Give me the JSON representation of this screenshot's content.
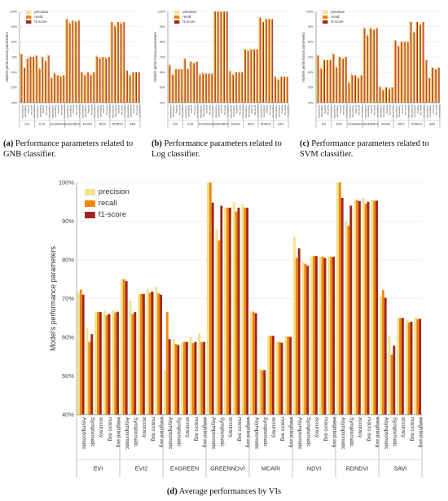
{
  "captions": {
    "a": {
      "letter": "(a)",
      "text": " Performance parameters related to GNB classifier."
    },
    "b": {
      "letter": "(b)",
      "text": " Performance parameters related to Log classifier."
    },
    "c": {
      "letter": "(c)",
      "text": " Performance parameters related to SVM classifier."
    },
    "d": {
      "letter": "(d)",
      "text": " Average performances by VIs"
    }
  },
  "colors": {
    "precision": "#f2e38c",
    "recall": "#f0870a",
    "f1-score": "#a2261f"
  },
  "chart_data": [
    {
      "id": "a",
      "type": "bar",
      "ylabel": "Model's performance parameters",
      "ylim": [
        40,
        100
      ],
      "yticks": [
        "40%",
        "50%",
        "60%",
        "70%",
        "80%",
        "90%",
        "100%"
      ],
      "legend": {
        "entries": [
          "precision",
          "recall",
          "f1-score"
        ],
        "placement": "top-left"
      },
      "groups": [
        "EVI",
        "EVI2",
        "EXGREEN",
        "GREENNDVI",
        "MCARI",
        "NDVI",
        "RDNDVI",
        "SAVI"
      ],
      "metrics": [
        "Asymptomatic",
        "Symptomatic",
        "accuracy",
        "macro avg",
        "weighted avg"
      ],
      "series": [
        {
          "name": "precision",
          "values": [
            73,
            64,
            69,
            70,
            70,
            72,
            62,
            71,
            67,
            72,
            56,
            59,
            58,
            57,
            59,
            96,
            92,
            94,
            93,
            94,
            61,
            59,
            60,
            58,
            60,
            70,
            69,
            70,
            69,
            70,
            94,
            90,
            93,
            92,
            93,
            62,
            59,
            60,
            60,
            60
          ]
        },
        {
          "name": "recall",
          "values": [
            72,
            63,
            69,
            71,
            70,
            71,
            63,
            70,
            68,
            71,
            57,
            60,
            58,
            58,
            58,
            95,
            93,
            94,
            94,
            94,
            60,
            58,
            60,
            59,
            60,
            71,
            70,
            70,
            70,
            70,
            93,
            91,
            93,
            93,
            93,
            61,
            58,
            60,
            60,
            60
          ]
        },
        {
          "name": "f1-score",
          "values": [
            72,
            63,
            69,
            70,
            70,
            71,
            62,
            70,
            67,
            71,
            56,
            59,
            58,
            57,
            58,
            95,
            92,
            94,
            93,
            94,
            60,
            58,
            60,
            58,
            60,
            70,
            69,
            70,
            69,
            70,
            93,
            90,
            93,
            92,
            93,
            61,
            58,
            60,
            60,
            60
          ]
        }
      ]
    },
    {
      "id": "b",
      "type": "bar",
      "ylabel": "Model's performance parameters",
      "ylim": [
        40,
        100
      ],
      "yticks": [
        "40%",
        "50%",
        "60%",
        "70%",
        "80%",
        "90%",
        "100%"
      ],
      "legend": {
        "entries": [
          "precision",
          "recall",
          "f1-score"
        ],
        "placement": "top-left"
      },
      "groups": [
        "EVI",
        "EVI2",
        "EXGREEN",
        "GREENNDVI",
        "MCARI",
        "NDVI",
        "RDNDVI",
        "SAVI"
      ],
      "metrics": [
        "Asymptomatic",
        "Symptomatic",
        "accuracy",
        "macro avg",
        "weighted avg"
      ],
      "series": [
        {
          "name": "precision",
          "values": [
            66,
            58,
            63,
            62,
            63,
            70,
            62,
            67,
            66,
            67,
            60,
            58,
            59,
            59,
            59,
            100,
            100,
            100,
            100,
            100,
            62,
            58,
            60,
            60,
            60,
            76,
            74,
            76,
            75,
            76,
            97,
            94,
            95,
            95,
            95,
            58,
            55,
            57,
            57,
            57
          ]
        },
        {
          "name": "recall",
          "values": [
            64,
            59,
            62,
            62,
            62,
            69,
            63,
            67,
            66,
            67,
            58,
            60,
            59,
            59,
            59,
            100,
            100,
            100,
            100,
            100,
            60,
            59,
            60,
            60,
            60,
            75,
            75,
            75,
            75,
            75,
            96,
            93,
            95,
            95,
            95,
            57,
            56,
            57,
            57,
            57
          ]
        },
        {
          "name": "f1-score",
          "values": [
            65,
            58,
            62,
            62,
            62,
            69,
            62,
            67,
            66,
            67,
            59,
            59,
            59,
            59,
            59,
            100,
            100,
            100,
            100,
            100,
            61,
            58,
            60,
            60,
            60,
            75,
            74,
            75,
            75,
            75,
            96,
            93,
            95,
            95,
            95,
            57,
            55,
            57,
            57,
            57
          ]
        }
      ]
    },
    {
      "id": "c",
      "type": "bar",
      "ylabel": "Model's performance parameters",
      "ylim": [
        40,
        100
      ],
      "yticks": [
        "40%",
        "50%",
        "60%",
        "70%",
        "80%",
        "90%",
        "100%"
      ],
      "legend": {
        "entries": [
          "precision",
          "recall",
          "f1-score"
        ],
        "placement": "top-left"
      },
      "groups": [
        "EVI",
        "EVI2",
        "EXGREEN",
        "GREENNDVI",
        "MCARI",
        "NDVI",
        "RDNDVI",
        "SAVI"
      ],
      "metrics": [
        "Asymptomatic",
        "Symptomatic",
        "accuracy",
        "macro avg",
        "weighted avg"
      ],
      "series": [
        {
          "name": "precision",
          "values": [
            72,
            62,
            69,
            68,
            69,
            73,
            63,
            71,
            69,
            71,
            52,
            58,
            58,
            56,
            58,
            90,
            84,
            89,
            88,
            89,
            50,
            48,
            50,
            49,
            50,
            82,
            77,
            80,
            80,
            80,
            94,
            86,
            93,
            91,
            93,
            69,
            56,
            63,
            62,
            63
          ]
        },
        {
          "name": "recall",
          "values": [
            71,
            63,
            68,
            68,
            68,
            72,
            64,
            70,
            69,
            70,
            54,
            59,
            58,
            57,
            58,
            89,
            85,
            89,
            88,
            89,
            51,
            49,
            50,
            50,
            50,
            81,
            78,
            80,
            80,
            80,
            93,
            87,
            93,
            92,
            93,
            68,
            57,
            63,
            62,
            63
          ]
        },
        {
          "name": "f1-score",
          "values": [
            71,
            62,
            68,
            68,
            68,
            72,
            63,
            70,
            69,
            70,
            53,
            58,
            58,
            56,
            58,
            89,
            84,
            89,
            88,
            89,
            50,
            48,
            50,
            49,
            50,
            81,
            77,
            80,
            80,
            80,
            93,
            86,
            93,
            91,
            93,
            68,
            56,
            63,
            62,
            63
          ]
        }
      ]
    },
    {
      "id": "d",
      "type": "bar",
      "ylabel": "Model's performance parameters",
      "ylim": [
        40,
        100
      ],
      "yticks": [
        "40%",
        "50%",
        "60%",
        "70%",
        "80%",
        "90%",
        "100%"
      ],
      "legend": {
        "entries": [
          "precision",
          "recall",
          "f1-score"
        ],
        "placement": "top-left"
      },
      "groups": [
        "EVI",
        "EVI2",
        "EXGREEN",
        "GREENNDVI",
        "MCARI",
        "NDVI",
        "RDNDVI",
        "SAVI"
      ],
      "metrics": [
        "Asymptomatic",
        "Symptomatic",
        "accuracy",
        "macro avg",
        "weighted avg"
      ],
      "series": [
        {
          "name": "precision",
          "values": [
            71.5,
            62.5,
            66.5,
            66.8,
            67.0,
            75.0,
            69.5,
            71.2,
            72.5,
            73.0,
            51.5,
            59.5,
            58.8,
            60.0,
            61.0,
            100,
            88.0,
            93.5,
            95.0,
            94.5,
            66.8,
            51.8,
            60.4,
            59.0,
            60.3,
            86.0,
            79.5,
            81.0,
            80.8,
            81.0,
            100,
            90.0,
            95.5,
            96.0,
            95.5,
            70.5,
            60.5,
            65.0,
            64.5,
            65.2
          ]
        },
        {
          "name": "recall",
          "values": [
            72.3,
            58.8,
            66.5,
            65.7,
            66.4,
            75.0,
            66.0,
            71.2,
            71.5,
            71.4,
            66.5,
            58.3,
            58.8,
            58.5,
            58.8,
            100,
            85.0,
            93.5,
            92.5,
            93.5,
            66.5,
            51.5,
            60.4,
            58.7,
            60.2,
            80.5,
            79.0,
            81.0,
            80.8,
            80.8,
            100,
            88.8,
            95.5,
            94.5,
            95.3,
            72.2,
            55.5,
            65.0,
            63.8,
            64.7
          ]
        },
        {
          "name": "f1-score",
          "values": [
            71.0,
            60.8,
            66.5,
            66.0,
            66.6,
            74.5,
            66.5,
            71.2,
            71.8,
            71.0,
            59.5,
            58.0,
            58.8,
            58.8,
            58.8,
            94.8,
            94.0,
            93.5,
            93.5,
            93.5,
            66.2,
            51.5,
            60.4,
            58.6,
            60.1,
            83.0,
            78.5,
            81.0,
            80.5,
            80.8,
            96.0,
            94.0,
            95.2,
            95.0,
            95.3,
            70.2,
            57.8,
            65.0,
            64.0,
            64.8
          ]
        }
      ]
    }
  ]
}
